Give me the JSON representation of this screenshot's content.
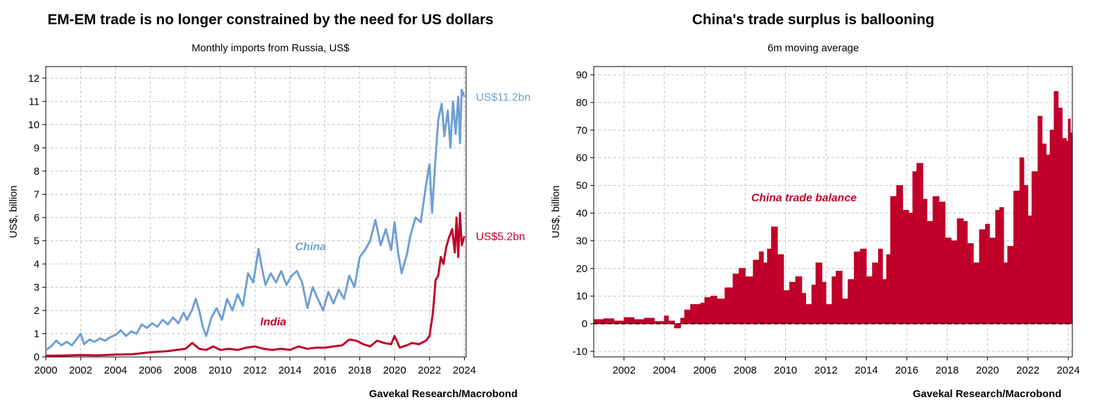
{
  "chart_data": [
    {
      "type": "line",
      "title": "EM-EM trade is no longer constrained by the need for US dollars",
      "subtitle": "Monthly imports from Russia, US$",
      "ylabel": "US$, billion",
      "xlabel": "",
      "source": "Gavekal Research/Macrobond",
      "ylim": [
        0,
        12.5
      ],
      "xlim": [
        2000,
        2024.1
      ],
      "yticks": [
        "0",
        "1",
        "2",
        "3",
        "4",
        "5",
        "6",
        "7",
        "8",
        "9",
        "10",
        "11",
        "12"
      ],
      "xticks": [
        "2000",
        "2002",
        "2004",
        "2006",
        "2008",
        "2010",
        "2012",
        "2014",
        "2016",
        "2018",
        "2020",
        "2022",
        "2024"
      ],
      "grid": true,
      "series": [
        {
          "name": "China",
          "label": "China",
          "end_label": "US$11.2bn",
          "color": "#6f9fd3",
          "points": [
            [
              2000.0,
              0.3
            ],
            [
              2000.3,
              0.45
            ],
            [
              2000.6,
              0.7
            ],
            [
              2000.9,
              0.5
            ],
            [
              2001.2,
              0.65
            ],
            [
              2001.5,
              0.5
            ],
            [
              2001.8,
              0.8
            ],
            [
              2002.0,
              1.0
            ],
            [
              2002.2,
              0.55
            ],
            [
              2002.5,
              0.75
            ],
            [
              2002.8,
              0.65
            ],
            [
              2003.1,
              0.8
            ],
            [
              2003.4,
              0.7
            ],
            [
              2003.7,
              0.85
            ],
            [
              2004.0,
              0.95
            ],
            [
              2004.3,
              1.15
            ],
            [
              2004.6,
              0.9
            ],
            [
              2004.9,
              1.1
            ],
            [
              2005.2,
              1.0
            ],
            [
              2005.5,
              1.4
            ],
            [
              2005.8,
              1.25
            ],
            [
              2006.1,
              1.45
            ],
            [
              2006.4,
              1.3
            ],
            [
              2006.7,
              1.6
            ],
            [
              2007.0,
              1.4
            ],
            [
              2007.3,
              1.7
            ],
            [
              2007.6,
              1.45
            ],
            [
              2007.9,
              1.9
            ],
            [
              2008.1,
              1.6
            ],
            [
              2008.4,
              2.05
            ],
            [
              2008.6,
              2.5
            ],
            [
              2008.8,
              2.0
            ],
            [
              2009.0,
              1.3
            ],
            [
              2009.2,
              0.9
            ],
            [
              2009.5,
              1.7
            ],
            [
              2009.8,
              2.1
            ],
            [
              2010.1,
              1.6
            ],
            [
              2010.4,
              2.5
            ],
            [
              2010.7,
              2.0
            ],
            [
              2011.0,
              2.7
            ],
            [
              2011.3,
              2.2
            ],
            [
              2011.6,
              3.6
            ],
            [
              2011.9,
              3.2
            ],
            [
              2012.2,
              4.65
            ],
            [
              2012.4,
              3.8
            ],
            [
              2012.6,
              3.1
            ],
            [
              2012.9,
              3.6
            ],
            [
              2013.2,
              3.2
            ],
            [
              2013.5,
              3.7
            ],
            [
              2013.8,
              3.1
            ],
            [
              2014.1,
              3.5
            ],
            [
              2014.4,
              3.7
            ],
            [
              2014.7,
              3.2
            ],
            [
              2015.0,
              2.1
            ],
            [
              2015.3,
              3.0
            ],
            [
              2015.6,
              2.5
            ],
            [
              2015.9,
              2.0
            ],
            [
              2016.2,
              2.8
            ],
            [
              2016.5,
              2.3
            ],
            [
              2016.8,
              2.9
            ],
            [
              2017.1,
              2.5
            ],
            [
              2017.4,
              3.5
            ],
            [
              2017.7,
              3.0
            ],
            [
              2018.0,
              4.3
            ],
            [
              2018.3,
              4.6
            ],
            [
              2018.6,
              5.0
            ],
            [
              2018.9,
              5.9
            ],
            [
              2019.2,
              4.8
            ],
            [
              2019.5,
              5.5
            ],
            [
              2019.8,
              4.6
            ],
            [
              2020.0,
              5.8
            ],
            [
              2020.2,
              4.5
            ],
            [
              2020.4,
              3.6
            ],
            [
              2020.7,
              4.4
            ],
            [
              2020.9,
              5.2
            ],
            [
              2021.2,
              6.0
            ],
            [
              2021.5,
              5.8
            ],
            [
              2021.8,
              7.4
            ],
            [
              2022.0,
              8.3
            ],
            [
              2022.15,
              6.2
            ],
            [
              2022.3,
              8.0
            ],
            [
              2022.5,
              10.2
            ],
            [
              2022.7,
              10.9
            ],
            [
              2022.85,
              9.5
            ],
            [
              2023.05,
              10.6
            ],
            [
              2023.2,
              9.0
            ],
            [
              2023.35,
              11.0
            ],
            [
              2023.5,
              9.6
            ],
            [
              2023.65,
              11.2
            ],
            [
              2023.75,
              9.2
            ],
            [
              2023.85,
              11.5
            ],
            [
              2024.0,
              11.2
            ]
          ]
        },
        {
          "name": "India",
          "label": "India",
          "end_label": "US$5.2bn",
          "color": "#c0002a",
          "points": [
            [
              2000.0,
              0.05
            ],
            [
              2001.0,
              0.06
            ],
            [
              2002.0,
              0.08
            ],
            [
              2003.0,
              0.07
            ],
            [
              2004.0,
              0.1
            ],
            [
              2005.0,
              0.12
            ],
            [
              2006.0,
              0.2
            ],
            [
              2007.0,
              0.25
            ],
            [
              2007.5,
              0.3
            ],
            [
              2008.0,
              0.35
            ],
            [
              2008.4,
              0.6
            ],
            [
              2008.8,
              0.35
            ],
            [
              2009.2,
              0.3
            ],
            [
              2009.6,
              0.45
            ],
            [
              2010.0,
              0.3
            ],
            [
              2010.5,
              0.35
            ],
            [
              2011.0,
              0.3
            ],
            [
              2011.5,
              0.4
            ],
            [
              2012.0,
              0.45
            ],
            [
              2012.5,
              0.35
            ],
            [
              2013.0,
              0.3
            ],
            [
              2013.5,
              0.35
            ],
            [
              2014.0,
              0.3
            ],
            [
              2014.5,
              0.45
            ],
            [
              2015.0,
              0.35
            ],
            [
              2015.5,
              0.4
            ],
            [
              2016.0,
              0.4
            ],
            [
              2016.5,
              0.45
            ],
            [
              2017.0,
              0.5
            ],
            [
              2017.4,
              0.75
            ],
            [
              2017.8,
              0.7
            ],
            [
              2018.2,
              0.55
            ],
            [
              2018.6,
              0.45
            ],
            [
              2019.0,
              0.7
            ],
            [
              2019.4,
              0.6
            ],
            [
              2019.8,
              0.55
            ],
            [
              2020.0,
              0.9
            ],
            [
              2020.3,
              0.4
            ],
            [
              2020.7,
              0.5
            ],
            [
              2021.0,
              0.6
            ],
            [
              2021.4,
              0.55
            ],
            [
              2021.8,
              0.7
            ],
            [
              2022.0,
              0.9
            ],
            [
              2022.2,
              1.9
            ],
            [
              2022.35,
              3.3
            ],
            [
              2022.5,
              3.5
            ],
            [
              2022.65,
              4.3
            ],
            [
              2022.8,
              4.0
            ],
            [
              2022.95,
              4.7
            ],
            [
              2023.1,
              5.1
            ],
            [
              2023.3,
              5.5
            ],
            [
              2023.45,
              4.5
            ],
            [
              2023.55,
              6.0
            ],
            [
              2023.65,
              4.3
            ],
            [
              2023.75,
              6.2
            ],
            [
              2023.85,
              4.8
            ],
            [
              2024.0,
              5.2
            ]
          ]
        }
      ]
    },
    {
      "type": "area",
      "title": "China's trade surplus is ballooning",
      "subtitle": "6m moving average",
      "ylabel": "US$, billion",
      "xlabel": "",
      "source": "Gavekal Research/Macrobond",
      "ylim": [
        -12,
        93
      ],
      "xlim": [
        2000.5,
        2024.2
      ],
      "yticks": [
        "-10",
        "0",
        "10",
        "20",
        "30",
        "40",
        "50",
        "60",
        "70",
        "80",
        "90"
      ],
      "xticks": [
        "2002",
        "2004",
        "2006",
        "2008",
        "2010",
        "2012",
        "2014",
        "2016",
        "2018",
        "2020",
        "2022",
        "2024"
      ],
      "grid": true,
      "series": [
        {
          "name": "China trade balance",
          "label": "China trade balance",
          "color": "#c0002a",
          "points": [
            [
              2000.5,
              1.5
            ],
            [
              2001.0,
              1.8
            ],
            [
              2001.5,
              1.0
            ],
            [
              2002.0,
              2.2
            ],
            [
              2002.5,
              1.5
            ],
            [
              2003.0,
              2.0
            ],
            [
              2003.5,
              0.8
            ],
            [
              2004.0,
              2.8
            ],
            [
              2004.2,
              1.0
            ],
            [
              2004.5,
              -1.5
            ],
            [
              2004.8,
              2.0
            ],
            [
              2005.0,
              5.0
            ],
            [
              2005.3,
              7.0
            ],
            [
              2005.8,
              7.5
            ],
            [
              2006.0,
              9.5
            ],
            [
              2006.3,
              10.0
            ],
            [
              2006.6,
              9.0
            ],
            [
              2007.0,
              13.0
            ],
            [
              2007.4,
              18.0
            ],
            [
              2007.7,
              20.0
            ],
            [
              2008.0,
              17.0
            ],
            [
              2008.4,
              23.0
            ],
            [
              2008.7,
              26.0
            ],
            [
              2008.9,
              22.0
            ],
            [
              2009.1,
              27.0
            ],
            [
              2009.3,
              35.0
            ],
            [
              2009.6,
              25.0
            ],
            [
              2009.9,
              12.0
            ],
            [
              2010.2,
              15.0
            ],
            [
              2010.5,
              17.0
            ],
            [
              2010.8,
              11.0
            ],
            [
              2011.0,
              7.0
            ],
            [
              2011.3,
              14.0
            ],
            [
              2011.5,
              22.0
            ],
            [
              2011.8,
              15.0
            ],
            [
              2012.0,
              7.0
            ],
            [
              2012.3,
              17.0
            ],
            [
              2012.5,
              19.0
            ],
            [
              2012.8,
              9.0
            ],
            [
              2013.1,
              16.0
            ],
            [
              2013.4,
              26.0
            ],
            [
              2013.7,
              27.0
            ],
            [
              2014.0,
              17.0
            ],
            [
              2014.3,
              22.0
            ],
            [
              2014.6,
              27.0
            ],
            [
              2014.8,
              16.0
            ],
            [
              2015.0,
              25.0
            ],
            [
              2015.2,
              46.0
            ],
            [
              2015.5,
              50.0
            ],
            [
              2015.8,
              41.0
            ],
            [
              2016.1,
              40.0
            ],
            [
              2016.3,
              55.0
            ],
            [
              2016.5,
              58.0
            ],
            [
              2016.8,
              45.0
            ],
            [
              2017.0,
              37.0
            ],
            [
              2017.3,
              46.0
            ],
            [
              2017.6,
              44.0
            ],
            [
              2017.9,
              31.0
            ],
            [
              2018.2,
              30.0
            ],
            [
              2018.5,
              38.0
            ],
            [
              2018.8,
              37.0
            ],
            [
              2019.0,
              29.0
            ],
            [
              2019.3,
              22.0
            ],
            [
              2019.6,
              34.0
            ],
            [
              2019.9,
              36.0
            ],
            [
              2020.1,
              31.0
            ],
            [
              2020.4,
              41.0
            ],
            [
              2020.6,
              42.0
            ],
            [
              2020.8,
              22.0
            ],
            [
              2021.0,
              28.0
            ],
            [
              2021.3,
              48.0
            ],
            [
              2021.6,
              60.0
            ],
            [
              2021.8,
              50.0
            ],
            [
              2022.0,
              39.0
            ],
            [
              2022.2,
              55.0
            ],
            [
              2022.5,
              75.0
            ],
            [
              2022.7,
              65.0
            ],
            [
              2022.9,
              61.0
            ],
            [
              2023.1,
              70.0
            ],
            [
              2023.3,
              84.0
            ],
            [
              2023.5,
              78.0
            ],
            [
              2023.7,
              67.0
            ],
            [
              2023.9,
              66.0
            ],
            [
              2024.0,
              74.0
            ],
            [
              2024.1,
              69.0
            ]
          ]
        }
      ]
    }
  ]
}
